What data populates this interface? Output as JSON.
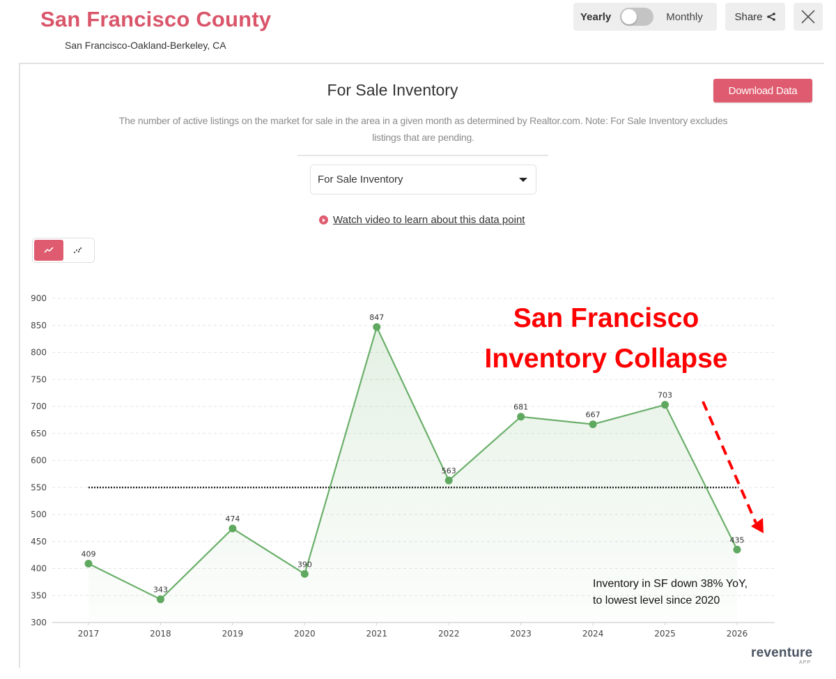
{
  "header": {
    "title": "San Francisco County",
    "subtitle": "San Francisco-Oakland-Berkeley, CA",
    "toggle": {
      "left_label": "Yearly",
      "right_label": "Monthly",
      "state": "yearly"
    },
    "share_label": "Share",
    "close_icon": "close-x-icon"
  },
  "section": {
    "title": "For Sale Inventory",
    "download_label": "Download Data",
    "description": "The number of active listings on the market for sale in the area in a given month as determined by Realtor.com. Note: For Sale Inventory excludes listings that are pending.",
    "select_value": "For Sale Inventory",
    "video_link": "Watch video to learn about this data point",
    "chart_type_buttons": [
      {
        "icon": "line-chart-icon",
        "active": true
      },
      {
        "icon": "scatter-chart-icon",
        "active": false
      }
    ]
  },
  "annotations": {
    "headline_line1": "San Francisco",
    "headline_line2": "Inventory Collapse",
    "note_line1": "Inventory in SF down 38% YoY,",
    "note_line2": "to lowest level since 2020"
  },
  "brand": {
    "name": "reventure",
    "sub": "APP"
  },
  "colors": {
    "accent": "#df5b6f",
    "title": "#d9556a",
    "line": "#6aaf6a",
    "marker": "#5fa85f",
    "annotation": "#ff0000"
  },
  "chart_data": {
    "type": "line",
    "title": "For Sale Inventory",
    "xlabel": "",
    "ylabel": "",
    "categories": [
      "2017",
      "2018",
      "2019",
      "2020",
      "2021",
      "2022",
      "2023",
      "2024",
      "2025",
      "2026"
    ],
    "series": [
      {
        "name": "For Sale Inventory",
        "values": [
          409,
          343,
          474,
          390,
          847,
          563,
          681,
          667,
          703,
          435
        ]
      }
    ],
    "ylim": [
      300,
      900
    ],
    "yticks": [
      300,
      350,
      400,
      450,
      500,
      550,
      600,
      650,
      700,
      750,
      800,
      850,
      900
    ],
    "grid": true,
    "area_fill": true,
    "data_labels": true,
    "reference_line": {
      "value": 550,
      "style": "dotted"
    },
    "annotations": [
      "San Francisco Inventory Collapse",
      "Inventory in SF down 38% YoY, to lowest level since 2020"
    ]
  }
}
